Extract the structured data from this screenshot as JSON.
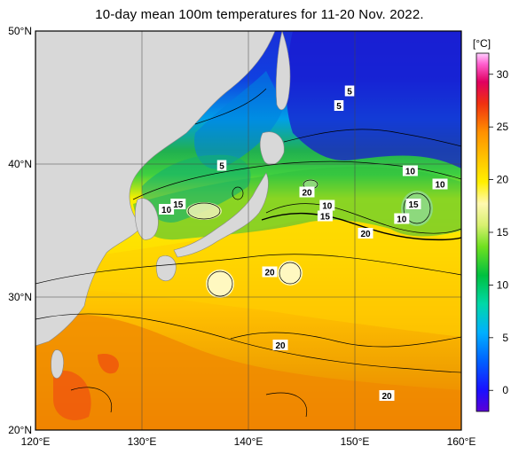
{
  "title": "10-day mean 100m temperatures for 11-20 Nov. 2022.",
  "map": {
    "lon_range": [
      120,
      160
    ],
    "lat_range": [
      20,
      50
    ],
    "lon_ticks": [
      "120°E",
      "130°E",
      "140°E",
      "150°E",
      "160°E"
    ],
    "lat_ticks": [
      "50°N",
      "40°N",
      "30°N",
      "20°N"
    ]
  },
  "colorbar": {
    "unit": "[°C]",
    "ticks": [
      "30",
      "25",
      "20",
      "15",
      "10",
      "5",
      "0"
    ]
  },
  "contour_labels": [
    {
      "text": "5",
      "lon": 137.5,
      "lat": 39.9
    },
    {
      "text": "5",
      "lon": 149.5,
      "lat": 45.5
    },
    {
      "text": "5",
      "lon": 148.5,
      "lat": 44.4
    },
    {
      "text": "10",
      "lon": 132.3,
      "lat": 36.6
    },
    {
      "text": "15",
      "lon": 133.4,
      "lat": 37.0
    },
    {
      "text": "20",
      "lon": 145.5,
      "lat": 37.9
    },
    {
      "text": "10",
      "lon": 147.4,
      "lat": 36.9
    },
    {
      "text": "15",
      "lon": 147.2,
      "lat": 36.1
    },
    {
      "text": "10",
      "lon": 155.2,
      "lat": 39.5
    },
    {
      "text": "10",
      "lon": 158.0,
      "lat": 38.5
    },
    {
      "text": "15",
      "lon": 155.5,
      "lat": 37.0
    },
    {
      "text": "10",
      "lon": 154.4,
      "lat": 35.9
    },
    {
      "text": "20",
      "lon": 151.0,
      "lat": 34.8
    },
    {
      "text": "20",
      "lon": 142.0,
      "lat": 31.9
    },
    {
      "text": "20",
      "lon": 143.0,
      "lat": 26.4
    },
    {
      "text": "20",
      "lon": 153.0,
      "lat": 22.6
    }
  ]
}
